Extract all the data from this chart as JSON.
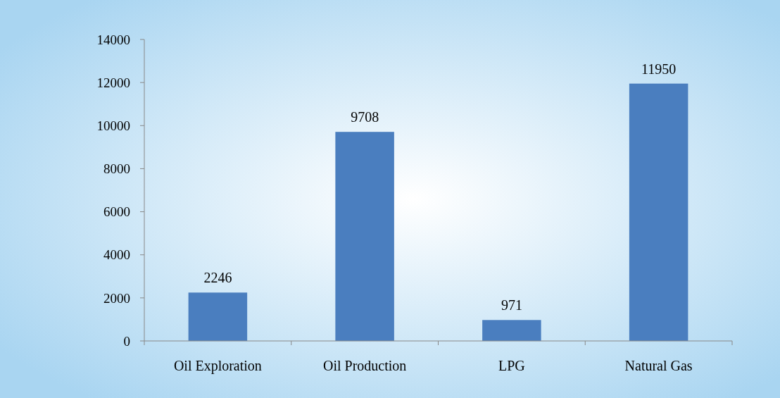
{
  "chart_data": {
    "type": "bar",
    "categories": [
      "Oil Exploration",
      "Oil Production",
      "LPG",
      "Natural Gas"
    ],
    "values": [
      2246,
      9708,
      971,
      11950
    ],
    "color": "#4a7ebf",
    "ylim": [
      0,
      14000
    ],
    "yticks": [
      0,
      2000,
      4000,
      6000,
      8000,
      10000,
      12000,
      14000
    ],
    "grid": false,
    "data_labels": true
  }
}
